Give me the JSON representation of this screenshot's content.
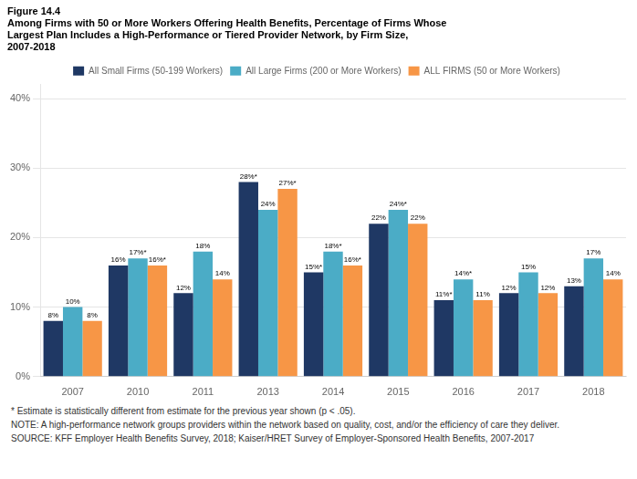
{
  "chart_data": {
    "type": "bar",
    "title": [
      "Figure 14.4",
      "Among Firms with 50 or More Workers Offering Health Benefits, Percentage of Firms Whose",
      "Largest Plan Includes a High-Performance or Tiered Provider Network, by Firm Size,",
      "2007-2018"
    ],
    "categories": [
      "2007",
      "2010",
      "2011",
      "2013",
      "2014",
      "2015",
      "2016",
      "2017",
      "2018"
    ],
    "series": [
      {
        "name": "All Small Firms (50-199 Workers)",
        "color": "#1f3864",
        "values": [
          8,
          16,
          12,
          28,
          15,
          22,
          11,
          12,
          13
        ],
        "value_labels": [
          "8%",
          "16%",
          "12%",
          "28%*",
          "15%*",
          "22%",
          "11%*",
          "12%",
          "13%"
        ]
      },
      {
        "name": "All Large Firms (200 or More Workers)",
        "color": "#4bacc6",
        "values": [
          10,
          17,
          18,
          24,
          18,
          24,
          14,
          15,
          17
        ],
        "value_labels": [
          "10%",
          "17%*",
          "18%",
          "24%",
          "18%*",
          "24%*",
          "14%*",
          "15%",
          "17%"
        ]
      },
      {
        "name": "ALL FIRMS (50 or More Workers)",
        "color": "#f79646",
        "values": [
          8,
          16,
          14,
          27,
          16,
          22,
          11,
          12,
          14
        ],
        "value_labels": [
          "8%",
          "16%*",
          "14%",
          "27%*",
          "16%*",
          "22%",
          "11%",
          "12%",
          "14%"
        ]
      }
    ],
    "ylim": [
      0,
      42
    ],
    "yticks": [
      {
        "value": 0,
        "label": "0%"
      },
      {
        "value": 10,
        "label": "10%"
      },
      {
        "value": 20,
        "label": "20%"
      },
      {
        "value": 30,
        "label": "30%"
      },
      {
        "value": 40,
        "label": "40%"
      }
    ],
    "grid": true,
    "legend": "top",
    "data_labels": true,
    "annotations": [
      "* Estimate is statistically different from estimate for the previous year shown (p < .05).",
      "NOTE: A high-performance network groups providers within the network based on quality, cost, and/or the efficiency of care they deliver.",
      "SOURCE: KFF Employer Health Benefits Survey, 2018; Kaiser/HRET Survey of Employer-Sponsored Health Benefits, 2007-2017"
    ]
  }
}
